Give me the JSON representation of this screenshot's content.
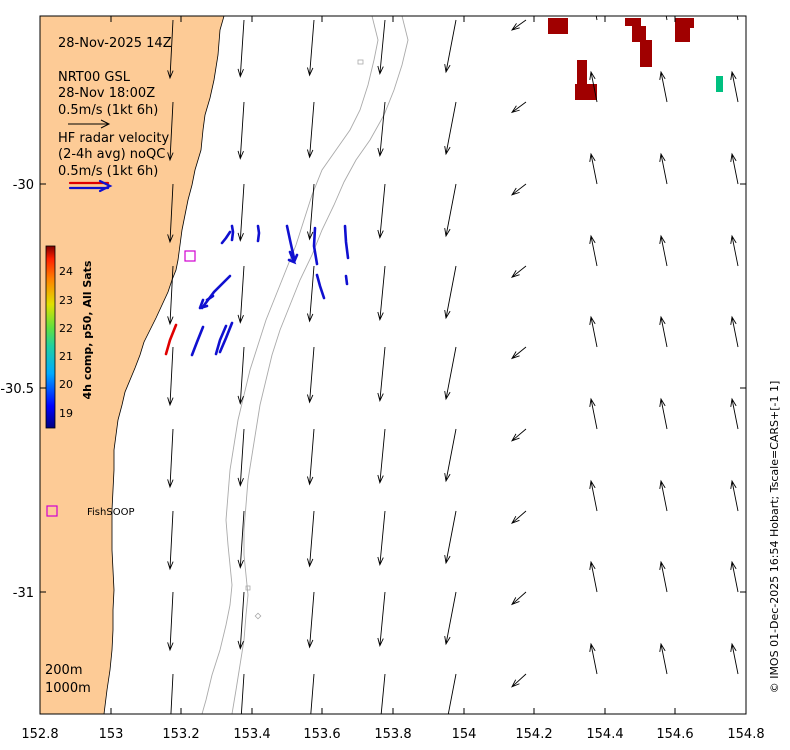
{
  "header": {
    "datetime": "28-Nov-2025 14Z",
    "model_line1": "NRT00 GSL",
    "model_line2": "28-Nov 18:00Z",
    "model_scale": "0.5m/s (1kt 6h)",
    "radar_line1": "HF radar velocity",
    "radar_line2": "(2-4h avg) noQC",
    "radar_scale": "0.5m/s (1kt 6h)"
  },
  "axes": {
    "x_ticks": [
      "152.8",
      "153",
      "153.2",
      "153.4",
      "153.6",
      "153.8",
      "154",
      "154.2",
      "154.4",
      "154.6",
      "154.8"
    ],
    "y_ticks": [
      "-30",
      "-30.5",
      "-31"
    ]
  },
  "colorbar": {
    "label": "4h comp, p50, All Sats",
    "ticks": [
      "24",
      "23",
      "22",
      "21",
      "20",
      "19"
    ],
    "range": [
      18.5,
      24.5
    ]
  },
  "markers": {
    "fishsoop_label": "FishSOOP"
  },
  "depth_legend": {
    "line1": "200m",
    "line2": "1000m"
  },
  "credit": "© IMOS 01-Dec-2025 16:54 Hobart; Tscale=CARS+[-1 1]",
  "colors": {
    "land": "#FDCB96",
    "radar_arrow": "#1010D0",
    "sst_warm": "#A00000",
    "sst_cool": "#00C080"
  }
}
